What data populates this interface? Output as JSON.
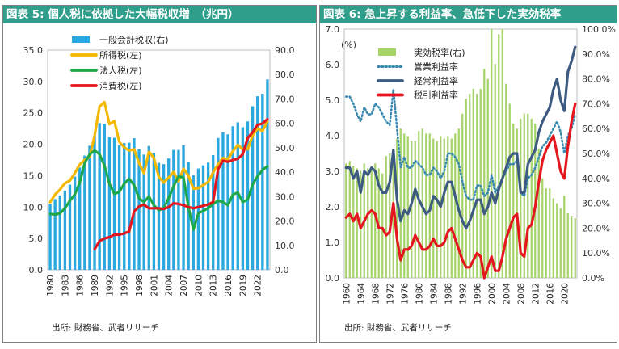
{
  "charts": [
    {
      "id": "left",
      "title": "図表 5: 個人税に依拠した大幅税収増　（兆円）",
      "source": "出所: 財務省、武者リサーチ",
      "chart_data": {
        "type": "bar+line",
        "x": [
          1980,
          1981,
          1982,
          1983,
          1984,
          1985,
          1986,
          1987,
          1988,
          1989,
          1990,
          1991,
          1992,
          1993,
          1994,
          1995,
          1996,
          1997,
          1998,
          1999,
          2000,
          2001,
          2002,
          2003,
          2004,
          2005,
          2006,
          2007,
          2008,
          2009,
          2010,
          2011,
          2012,
          2013,
          2014,
          2015,
          2016,
          2017,
          2018,
          2019,
          2020,
          2021,
          2022,
          2023,
          2024
        ],
        "x_tick_labels": [
          "1980",
          "1983",
          "1986",
          "1989",
          "1992",
          "1995",
          "1998",
          "2001",
          "2004",
          "2007",
          "2010",
          "2013",
          "2016",
          "2019",
          "2022"
        ],
        "y_left": {
          "range": [
            0,
            35
          ],
          "ticks": [
            "0.0",
            "5.0",
            "10.0",
            "15.0",
            "20.0",
            "25.0",
            "30.0",
            "35.0"
          ]
        },
        "y_right": {
          "range": [
            0,
            90
          ],
          "ticks": [
            "0.0",
            "10.0",
            "20.0",
            "30.0",
            "40.0",
            "50.0",
            "60.0",
            "70.0",
            "80.0",
            "90.0"
          ]
        },
        "series": [
          {
            "name": "一般会計税収(右)",
            "kind": "bar",
            "axis": "right",
            "color": "#2ba8e0",
            "values": [
              26.9,
              29.0,
              30.5,
              32.4,
              34.9,
              38.2,
              41.9,
              46.8,
              50.8,
              54.9,
              60.1,
              59.8,
              54.4,
              54.1,
              51.0,
              51.9,
              52.1,
              53.9,
              49.4,
              47.2,
              50.7,
              47.9,
              43.8,
              43.3,
              45.6,
              49.1,
              49.1,
              51.0,
              44.3,
              38.7,
              41.5,
              42.8,
              43.9,
              47.0,
              54.0,
              56.3,
              55.5,
              58.8,
              60.4,
              58.4,
              60.8,
              67.0,
              71.1,
              72.1,
              78.0
            ]
          },
          {
            "name": "所得税(左)",
            "kind": "line",
            "axis": "left",
            "color": "#f5b800",
            "values": [
              10.8,
              12.0,
              12.8,
              13.8,
              14.2,
              15.4,
              16.8,
              17.5,
              18.0,
              21.4,
              26.0,
              26.7,
              23.2,
              23.7,
              20.4,
              19.5,
              19.0,
              19.2,
              17.0,
              15.4,
              18.8,
              17.8,
              14.8,
              13.9,
              14.7,
              15.6,
              14.1,
              16.1,
              15.0,
              12.9,
              13.0,
              13.5,
              14.0,
              15.5,
              16.8,
              17.8,
              17.6,
              18.9,
              19.9,
              19.2,
              19.2,
              21.4,
              22.5,
              22.1,
              23.6
            ]
          },
          {
            "name": "法人税(左)",
            "kind": "line",
            "axis": "left",
            "color": "#1fa84a",
            "values": [
              8.9,
              8.8,
              9.0,
              9.8,
              11.0,
              12.0,
              13.9,
              17.0,
              18.4,
              19.0,
              18.4,
              16.6,
              13.7,
              12.1,
              12.4,
              13.7,
              14.5,
              13.5,
              11.4,
              10.8,
              11.7,
              10.3,
              9.5,
              9.8,
              11.4,
              13.3,
              14.9,
              14.7,
              10.0,
              6.4,
              9.0,
              9.4,
              9.8,
              10.5,
              11.0,
              10.8,
              10.3,
              12.0,
              12.3,
              10.8,
              11.2,
              13.6,
              14.9,
              15.9,
              16.5
            ]
          },
          {
            "name": "消費税(左)",
            "kind": "line",
            "axis": "left",
            "color": "#e4161e",
            "values": [
              null,
              null,
              null,
              null,
              null,
              null,
              null,
              null,
              null,
              3.3,
              4.6,
              5.0,
              5.2,
              5.6,
              5.6,
              5.8,
              6.1,
              9.3,
              10.1,
              10.4,
              9.8,
              9.8,
              9.8,
              9.7,
              10.0,
              10.6,
              10.5,
              10.3,
              10.0,
              9.8,
              10.0,
              10.2,
              10.4,
              10.8,
              16.0,
              17.4,
              17.2,
              17.5,
              17.7,
              18.4,
              21.0,
              21.9,
              23.1,
              23.3,
              24.0
            ]
          }
        ]
      }
    },
    {
      "id": "right",
      "title": "図表 6: 急上昇する利益率、急低下した実効税率",
      "source": "出所: 財務省、武者リサーチ",
      "chart_data": {
        "type": "bar+line",
        "x": [
          1960,
          1961,
          1962,
          1963,
          1964,
          1965,
          1966,
          1967,
          1968,
          1969,
          1970,
          1971,
          1972,
          1973,
          1974,
          1975,
          1976,
          1977,
          1978,
          1979,
          1980,
          1981,
          1982,
          1983,
          1984,
          1985,
          1986,
          1987,
          1988,
          1989,
          1990,
          1991,
          1992,
          1993,
          1994,
          1995,
          1996,
          1997,
          1998,
          1999,
          2000,
          2001,
          2002,
          2003,
          2004,
          2005,
          2006,
          2007,
          2008,
          2009,
          2010,
          2011,
          2012,
          2013,
          2014,
          2015,
          2016,
          2017,
          2018,
          2019,
          2020,
          2021,
          2022,
          2023
        ],
        "x_tick_labels": [
          "1960",
          "1964",
          "1968",
          "1972",
          "1976",
          "1980",
          "1984",
          "1988",
          "1992",
          "1996",
          "2000",
          "2004",
          "2008",
          "2012",
          "2016",
          "2020"
        ],
        "y_left": {
          "range": [
            0,
            7
          ],
          "ticks": [
            "0.0",
            "1.0",
            "2.0",
            "3.0",
            "4.0",
            "5.0",
            "6.0",
            "7.0"
          ],
          "unit": "(%)"
        },
        "y_right": {
          "range": [
            0,
            100
          ],
          "ticks": [
            "0.0%",
            "10.0%",
            "20.0%",
            "30.0%",
            "40.0%",
            "50.0%",
            "60.0%",
            "70.0%",
            "80.0%",
            "90.0%",
            "100.0%"
          ]
        },
        "series": [
          {
            "name": "実効税率(右)",
            "kind": "bar",
            "axis": "right",
            "color": "#a7d36b",
            "values": [
              46,
              47,
              45,
              44,
              43,
              46,
              44,
              45,
              46,
              44,
              42,
              49,
              50,
              52,
              56,
              60,
              58,
              57,
              55,
              55,
              59,
              60,
              58,
              58,
              56,
              55,
              57,
              56,
              57,
              56,
              58,
              60,
              66,
              72,
              74,
              76,
              74,
              76,
              84,
              80,
              100,
              86,
              98,
              100,
              78,
              70,
              62,
              60,
              64,
              66,
              66,
              64,
              62,
              52,
              40,
              36,
              36,
              32,
              30,
              28,
              33,
              26,
              25,
              24
            ]
          },
          {
            "name": "営業利益率",
            "kind": "dotted-line",
            "axis": "left",
            "color": "#3a8ab0",
            "values": [
              5.1,
              5.1,
              4.9,
              4.6,
              4.4,
              4.8,
              4.6,
              4.6,
              4.9,
              4.8,
              4.6,
              4.4,
              4.3,
              5.3,
              4.2,
              3.1,
              3.4,
              3.1,
              3.1,
              3.3,
              3.2,
              3.1,
              2.9,
              2.9,
              3.1,
              3.0,
              2.8,
              3.0,
              3.5,
              3.5,
              3.4,
              3.2,
              2.7,
              2.3,
              2.2,
              2.2,
              2.6,
              2.6,
              2.3,
              2.4,
              2.9,
              2.4,
              2.6,
              2.8,
              3.0,
              3.2,
              3.2,
              3.3,
              2.4,
              2.3,
              2.8,
              2.9,
              3.1,
              3.4,
              3.7,
              3.8,
              4.0,
              4.2,
              4.4,
              4.1,
              3.5,
              4.0,
              4.2,
              4.6
            ]
          },
          {
            "name": "経常利益率",
            "kind": "line",
            "axis": "left",
            "color": "#3d5a80",
            "values": [
              3.1,
              3.1,
              2.8,
              3.0,
              2.4,
              3.0,
              2.9,
              3.1,
              3.0,
              2.6,
              2.4,
              2.4,
              2.7,
              3.6,
              2.2,
              1.6,
              1.9,
              1.8,
              2.1,
              2.5,
              2.2,
              2.0,
              1.8,
              1.9,
              2.3,
              2.2,
              2.0,
              2.4,
              2.7,
              2.7,
              2.3,
              1.9,
              1.6,
              1.4,
              1.6,
              1.9,
              2.2,
              2.2,
              1.8,
              2.0,
              2.4,
              2.1,
              2.5,
              2.8,
              3.1,
              3.4,
              3.5,
              3.5,
              2.4,
              2.4,
              3.2,
              3.4,
              3.6,
              4.1,
              4.4,
              4.6,
              4.8,
              5.3,
              5.6,
              5.0,
              4.7,
              5.8,
              6.1,
              6.5
            ]
          },
          {
            "name": "税引利益率",
            "kind": "line",
            "axis": "left",
            "color": "#e4161e",
            "values": [
              1.7,
              1.8,
              1.6,
              1.8,
              1.4,
              1.6,
              1.8,
              1.9,
              1.8,
              1.4,
              1.4,
              1.2,
              1.3,
              2.1,
              1.1,
              0.5,
              0.8,
              0.8,
              0.9,
              1.2,
              1.0,
              0.8,
              0.8,
              0.9,
              1.1,
              0.9,
              0.9,
              1.0,
              1.3,
              1.4,
              1.1,
              0.8,
              0.5,
              0.3,
              0.3,
              0.5,
              0.7,
              0.6,
              0.0,
              0.3,
              0.6,
              0.2,
              0.2,
              0.6,
              1.1,
              1.4,
              1.7,
              1.8,
              0.7,
              0.6,
              1.4,
              1.5,
              2.0,
              2.7,
              3.3,
              3.6,
              3.8,
              4.0,
              3.5,
              3.0,
              2.8,
              3.7,
              4.4,
              4.9
            ]
          }
        ]
      }
    }
  ]
}
